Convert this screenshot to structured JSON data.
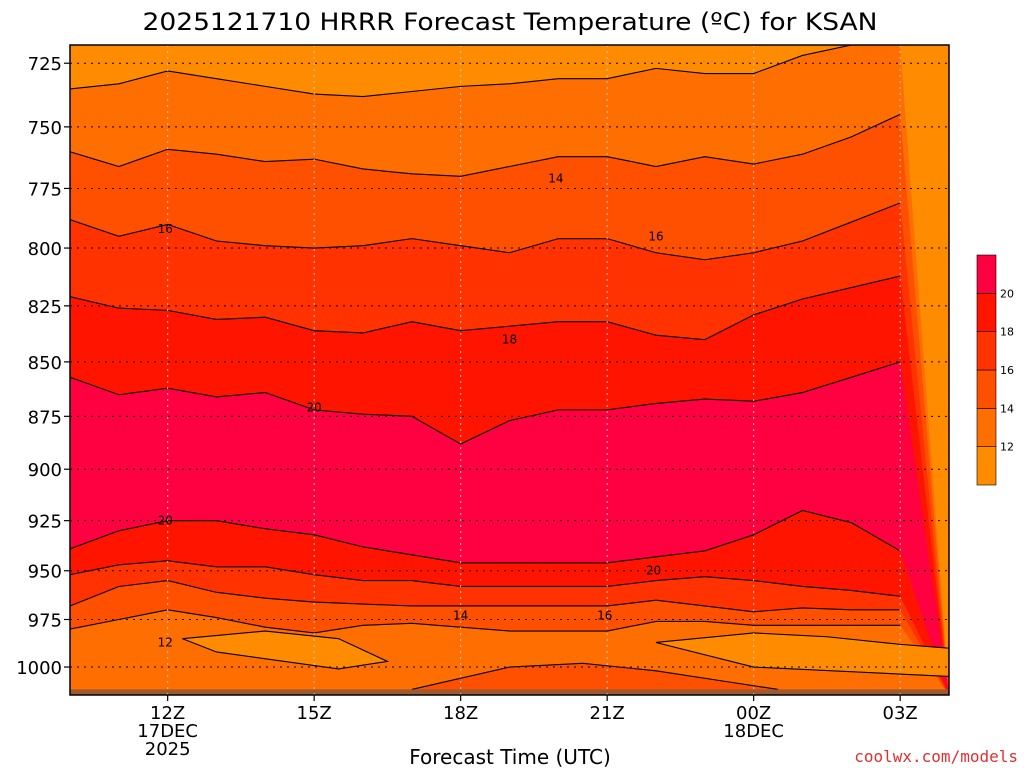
{
  "chart_data": {
    "type": "heatmap",
    "title": "2025121710 HRRR Forecast Temperature (ºC) for KSAN",
    "xlabel": "Forecast Time (UTC)",
    "ylabel": "",
    "x_ticks": [
      {
        "hour": 12,
        "label": "12Z",
        "sub1": "17DEC",
        "sub2": "2025"
      },
      {
        "hour": 15,
        "label": "15Z",
        "sub1": "",
        "sub2": ""
      },
      {
        "hour": 18,
        "label": "18Z",
        "sub1": "",
        "sub2": ""
      },
      {
        "hour": 21,
        "label": "21Z",
        "sub1": "",
        "sub2": ""
      },
      {
        "hour": 24,
        "label": "00Z",
        "sub1": "18DEC",
        "sub2": ""
      },
      {
        "hour": 27,
        "label": "03Z",
        "sub1": "",
        "sub2": ""
      }
    ],
    "y_ticks": [
      725,
      750,
      775,
      800,
      825,
      850,
      875,
      900,
      925,
      950,
      975,
      1000
    ],
    "xlim": [
      10,
      28
    ],
    "ylim_pressure_hpa": [
      1015,
      718
    ],
    "y_scale": "log",
    "grid": true,
    "colorbar_labels": [
      "12",
      "14",
      "16",
      "18",
      "20"
    ],
    "colorbar_colors": [
      "#ff8c00",
      "#ff6e00",
      "#ff5000",
      "#ff3200",
      "#ff1400",
      "#ff0040"
    ],
    "terrain_color": "#9b5a32",
    "contour_labels": [
      {
        "text": "14",
        "hour": 19.95,
        "p": 771
      },
      {
        "text": "16",
        "hour": 11.95,
        "p": 792
      },
      {
        "text": "16",
        "hour": 22.0,
        "p": 795
      },
      {
        "text": "18",
        "hour": 19.0,
        "p": 840
      },
      {
        "text": "20",
        "hour": 15.0,
        "p": 871
      },
      {
        "text": "20",
        "hour": 11.95,
        "p": 925
      },
      {
        "text": "20",
        "hour": 21.95,
        "p": 950
      },
      {
        "text": "14",
        "hour": 18.0,
        "p": 973
      },
      {
        "text": "16",
        "hour": 20.95,
        "p": 973
      },
      {
        "text": "12",
        "hour": 11.95,
        "p": 987
      }
    ],
    "contours_boundaries": [
      {
        "p": [
          735,
          733,
          728,
          731,
          734,
          737,
          738,
          736,
          734,
          733,
          731,
          731,
          727,
          729,
          729,
          722,
          718,
          718
        ]
      },
      {
        "p": [
          760,
          766,
          759,
          761,
          764,
          763,
          767,
          769,
          770,
          766,
          762,
          762,
          766,
          762,
          765,
          761,
          754,
          745
        ]
      },
      {
        "p": [
          788,
          795,
          790,
          797,
          799,
          800,
          799,
          796,
          799,
          802,
          796,
          796,
          802,
          805,
          802,
          797,
          789,
          781
        ]
      },
      {
        "p": [
          821,
          826,
          827,
          831,
          830,
          836,
          837,
          832,
          836,
          834,
          832,
          832,
          838,
          840,
          829,
          822,
          817,
          812
        ]
      },
      {
        "p": [
          857,
          865,
          862,
          866,
          864,
          872,
          874,
          875,
          888,
          877,
          872,
          872,
          869,
          867,
          868,
          864,
          857,
          850
        ]
      },
      {
        "p": [
          939,
          930,
          925,
          925,
          929,
          932,
          938,
          942,
          946,
          946,
          946,
          946,
          943,
          940,
          932,
          920,
          926,
          940
        ]
      },
      {
        "p": [
          952,
          947,
          945,
          948,
          948,
          952,
          955,
          955,
          958,
          958,
          958,
          958,
          955,
          953,
          955,
          958,
          960,
          963
        ]
      },
      {
        "p": [
          968,
          958,
          955,
          961,
          964,
          966,
          967,
          968,
          968,
          968,
          968,
          968,
          965,
          968,
          971,
          969,
          970,
          970
        ]
      },
      {
        "p": [
          980,
          975,
          970,
          974,
          979,
          982,
          978,
          977,
          979,
          981,
          981,
          981,
          976,
          976,
          978,
          978,
          978,
          978
        ]
      }
    ]
  },
  "watermark": "coolwx.com/models"
}
